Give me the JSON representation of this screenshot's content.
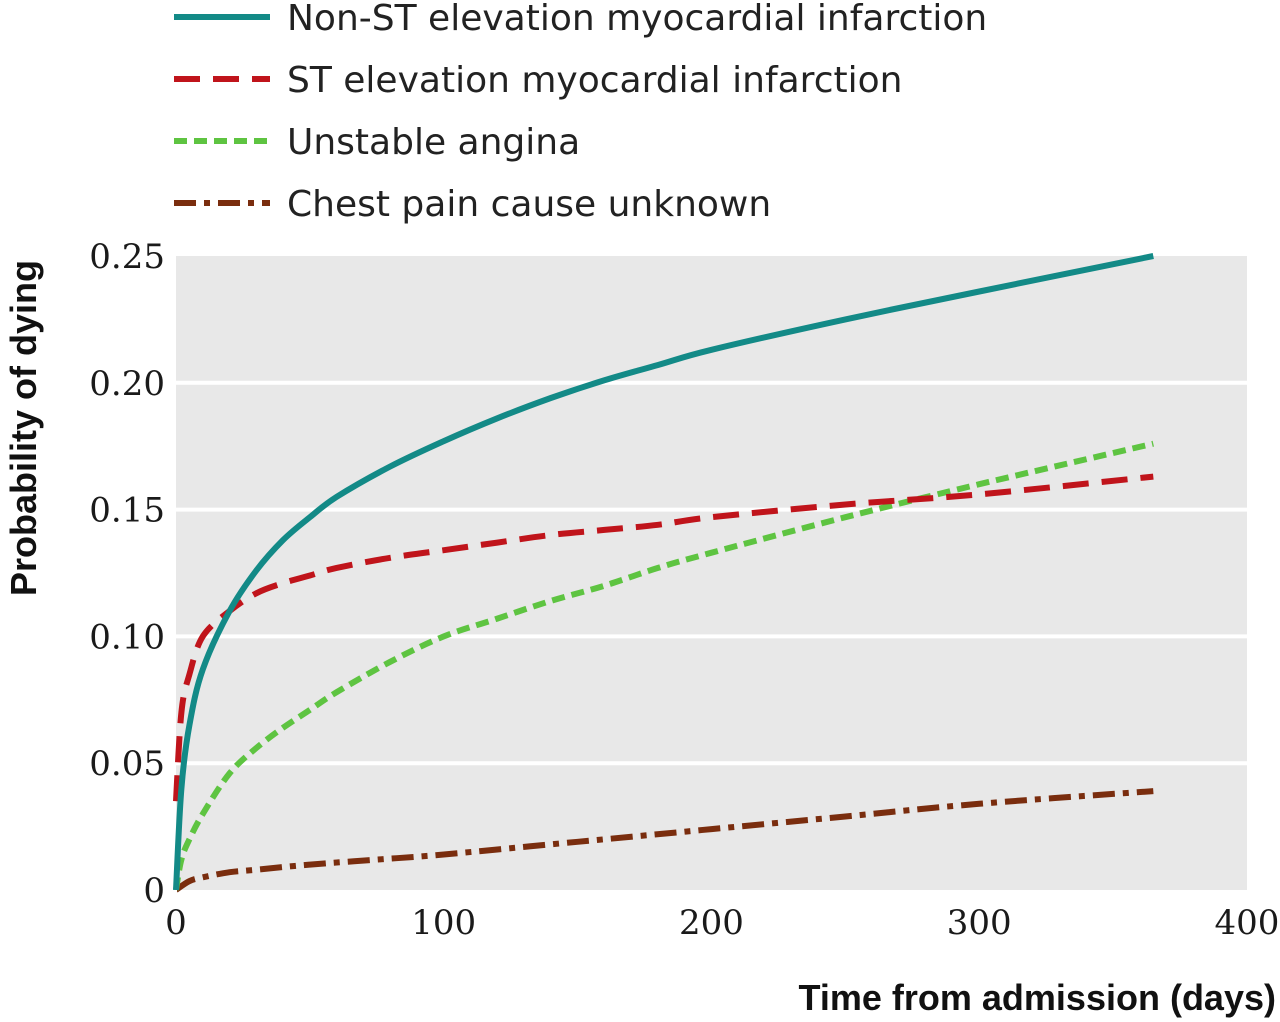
{
  "chart_data": {
    "type": "line",
    "title": "",
    "xlabel": "Time from admission (days)",
    "ylabel": "Probability of dying",
    "xlim": [
      0,
      400
    ],
    "ylim": [
      0,
      0.25
    ],
    "x_ticks": [
      "0",
      "100",
      "200",
      "300",
      "400"
    ],
    "y_ticks": [
      "0",
      "0.05",
      "0.10",
      "0.15",
      "0.20",
      "0.25"
    ],
    "grid": "horizontal",
    "legend_position": "top-left",
    "series": [
      {
        "name": "Non-ST elevation myocardial infarction",
        "color": "#138a87",
        "dash": "solid",
        "x": [
          0,
          2,
          5,
          10,
          20,
          30,
          40,
          50,
          60,
          80,
          100,
          120,
          140,
          160,
          180,
          200,
          250,
          300,
          365
        ],
        "y": [
          0,
          0.04,
          0.065,
          0.087,
          0.11,
          0.126,
          0.138,
          0.147,
          0.155,
          0.167,
          0.177,
          0.186,
          0.194,
          0.201,
          0.207,
          0.213,
          0.225,
          0.236,
          0.25
        ]
      },
      {
        "name": "ST elevation myocardial infarction",
        "color": "#c0141b",
        "dash": "dashed",
        "x": [
          0,
          2,
          5,
          10,
          20,
          30,
          40,
          50,
          60,
          80,
          100,
          120,
          140,
          160,
          180,
          200,
          250,
          300,
          365
        ],
        "y": [
          0.035,
          0.07,
          0.085,
          0.1,
          0.11,
          0.117,
          0.121,
          0.124,
          0.127,
          0.131,
          0.134,
          0.137,
          0.14,
          0.142,
          0.144,
          0.147,
          0.152,
          0.156,
          0.163
        ]
      },
      {
        "name": "Unstable angina",
        "color": "#5ec441",
        "dash": "short-dashed",
        "x": [
          0,
          2,
          5,
          10,
          20,
          30,
          40,
          50,
          60,
          80,
          100,
          120,
          140,
          160,
          180,
          200,
          250,
          300,
          365
        ],
        "y": [
          0,
          0.012,
          0.02,
          0.03,
          0.046,
          0.056,
          0.064,
          0.071,
          0.078,
          0.09,
          0.1,
          0.107,
          0.114,
          0.12,
          0.127,
          0.133,
          0.147,
          0.16,
          0.176
        ]
      },
      {
        "name": "Chest pain cause unknown",
        "color": "#7a2d0e",
        "dash": "dash-dot",
        "x": [
          0,
          5,
          10,
          20,
          30,
          50,
          75,
          100,
          150,
          200,
          250,
          300,
          365
        ],
        "y": [
          0,
          0.0035,
          0.005,
          0.007,
          0.008,
          0.01,
          0.012,
          0.014,
          0.019,
          0.024,
          0.029,
          0.034,
          0.039
        ]
      }
    ]
  }
}
